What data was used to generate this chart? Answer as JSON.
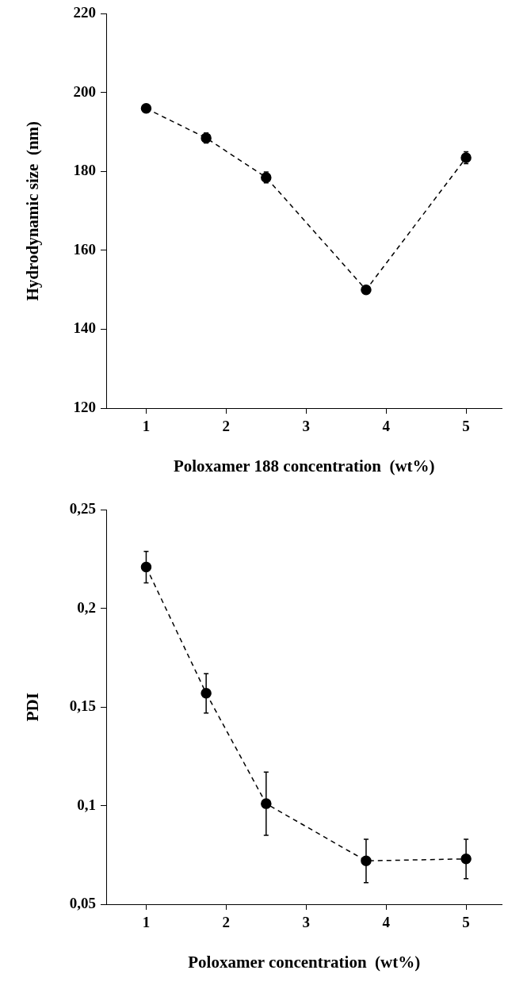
{
  "chart_data": [
    {
      "type": "line",
      "xlabel": "Poloxamer 188 concentration  (wt%)",
      "ylabel": "Hydrodynamic size  (nm)",
      "x": [
        1,
        1.75,
        2.5,
        3.75,
        5
      ],
      "series": [
        {
          "color": "#000000",
          "values": [
            196,
            188.5,
            178.5,
            150,
            183.5
          ],
          "errors": [
            null,
            1.3,
            1.4,
            null,
            1.5
          ]
        }
      ],
      "xlim": [
        0.5,
        5.45
      ],
      "xticks": [
        1,
        2,
        3,
        4,
        5
      ],
      "ylim": [
        120,
        220
      ],
      "yticks": [
        120,
        140,
        160,
        180,
        200,
        220
      ],
      "grid": false,
      "legend": false,
      "marker": "circle",
      "line_style": "dashed"
    },
    {
      "type": "line",
      "xlabel": "Poloxamer concentration  (wt%)",
      "ylabel": "PDI",
      "x": [
        1,
        1.75,
        2.5,
        3.75,
        5
      ],
      "series": [
        {
          "color": "#000000",
          "values": [
            0.221,
            0.157,
            0.101,
            0.072,
            0.073
          ],
          "errors": [
            [
              0.213,
              0.229
            ],
            [
              0.147,
              0.167
            ],
            [
              0.085,
              0.117
            ],
            [
              0.061,
              0.083
            ],
            [
              0.063,
              0.083
            ]
          ]
        }
      ],
      "xlim": [
        0.5,
        5.45
      ],
      "xticks": [
        1,
        2,
        3,
        4,
        5
      ],
      "ylim": [
        0.05,
        0.25
      ],
      "yticks": [
        {
          "value": 0.05,
          "label": "0,05"
        },
        {
          "value": 0.1,
          "label": "0,1"
        },
        {
          "value": 0.15,
          "label": "0,15"
        },
        {
          "value": 0.2,
          "label": "0,2"
        },
        {
          "value": 0.25,
          "label": "0,25"
        }
      ],
      "grid": false,
      "legend": false,
      "marker": "circle",
      "line_style": "dashed"
    }
  ]
}
